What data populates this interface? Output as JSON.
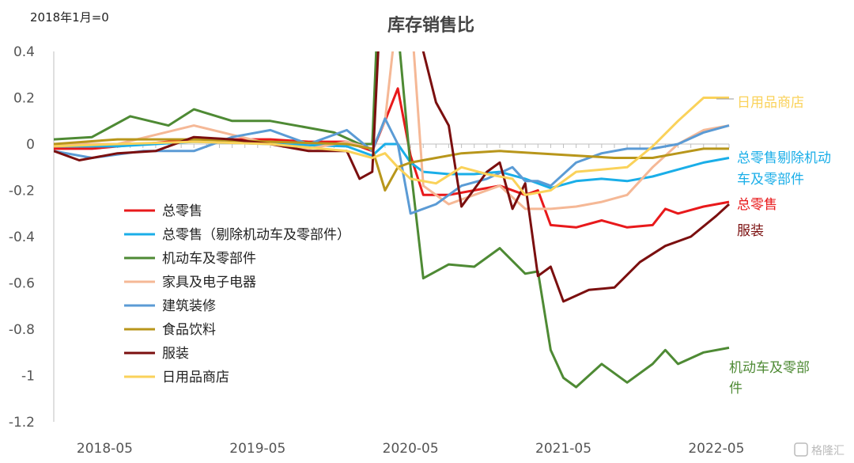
{
  "chart_data": {
    "type": "line",
    "title": "库存销售比",
    "note": "2018年1月=0",
    "ylim": [
      -1.2,
      0.4
    ],
    "yticks": [
      0.4,
      0.2,
      0,
      -0.2,
      -0.4,
      -0.6,
      -0.8,
      -1,
      -1.2
    ],
    "ytick_labels": [
      "0.4",
      "0.2",
      "0",
      "-0.2",
      "-0.4",
      "-0.6",
      "-0.8",
      "-1",
      "-1.2"
    ],
    "x_start": "2018-01",
    "x_end": "2022-06",
    "xticks": [
      "2018-05",
      "2019-05",
      "2020-05",
      "2021-05",
      "2022-05"
    ],
    "grid": false,
    "legend_position": "left-center",
    "watermark": "格隆汇",
    "series": [
      {
        "name": "总零售",
        "color": "#e8191b",
        "end_label": "总零售",
        "points": [
          [
            "2018-01",
            -0.02
          ],
          [
            "2018-04",
            -0.02
          ],
          [
            "2018-08",
            0.0
          ],
          [
            "2018-12",
            0.02
          ],
          [
            "2019-03",
            0.02
          ],
          [
            "2019-06",
            0.02
          ],
          [
            "2019-09",
            0.01
          ],
          [
            "2019-12",
            0.01
          ],
          [
            "2020-02",
            -0.03
          ],
          [
            "2020-03",
            0.1
          ],
          [
            "2020-04",
            0.24
          ],
          [
            "2020-05",
            -0.05
          ],
          [
            "2020-06",
            -0.22
          ],
          [
            "2020-08",
            -0.22
          ],
          [
            "2020-10",
            -0.2
          ],
          [
            "2020-12",
            -0.18
          ],
          [
            "2021-02",
            -0.22
          ],
          [
            "2021-03",
            -0.2
          ],
          [
            "2021-04",
            -0.35
          ],
          [
            "2021-06",
            -0.36
          ],
          [
            "2021-08",
            -0.33
          ],
          [
            "2021-10",
            -0.36
          ],
          [
            "2021-12",
            -0.35
          ],
          [
            "2022-01",
            -0.28
          ],
          [
            "2022-02",
            -0.3
          ],
          [
            "2022-04",
            -0.27
          ],
          [
            "2022-06",
            -0.25
          ]
        ]
      },
      {
        "name": "总零售（剔除机动车及零部件）",
        "color": "#1aaee8",
        "end_label": "总零售剔除机动车及零部件",
        "points": [
          [
            "2018-01",
            -0.01
          ],
          [
            "2018-06",
            -0.01
          ],
          [
            "2018-12",
            0.01
          ],
          [
            "2019-06",
            0.0
          ],
          [
            "2019-12",
            -0.01
          ],
          [
            "2020-02",
            -0.05
          ],
          [
            "2020-03",
            0.0
          ],
          [
            "2020-04",
            0.0
          ],
          [
            "2020-05",
            -0.08
          ],
          [
            "2020-06",
            -0.12
          ],
          [
            "2020-08",
            -0.13
          ],
          [
            "2020-10",
            -0.13
          ],
          [
            "2020-12",
            -0.12
          ],
          [
            "2021-02",
            -0.15
          ],
          [
            "2021-04",
            -0.19
          ],
          [
            "2021-06",
            -0.16
          ],
          [
            "2021-08",
            -0.15
          ],
          [
            "2021-10",
            -0.16
          ],
          [
            "2021-12",
            -0.14
          ],
          [
            "2022-02",
            -0.11
          ],
          [
            "2022-04",
            -0.08
          ],
          [
            "2022-06",
            -0.06
          ]
        ]
      },
      {
        "name": "机动车及零部件",
        "color": "#4e8a34",
        "end_label": "机动车及零部件",
        "points": [
          [
            "2018-01",
            0.02
          ],
          [
            "2018-04",
            0.03
          ],
          [
            "2018-07",
            0.12
          ],
          [
            "2018-10",
            0.08
          ],
          [
            "2018-12",
            0.15
          ],
          [
            "2019-03",
            0.1
          ],
          [
            "2019-06",
            0.1
          ],
          [
            "2019-09",
            0.07
          ],
          [
            "2019-11",
            0.05
          ],
          [
            "2020-01",
            0.0
          ],
          [
            "2020-02",
            0.0
          ],
          [
            "2020-03",
            1.3
          ],
          [
            "2020-04",
            0.5
          ],
          [
            "2020-05",
            -0.1
          ],
          [
            "2020-06",
            -0.58
          ],
          [
            "2020-08",
            -0.52
          ],
          [
            "2020-10",
            -0.53
          ],
          [
            "2020-12",
            -0.45
          ],
          [
            "2021-02",
            -0.56
          ],
          [
            "2021-03",
            -0.55
          ],
          [
            "2021-04",
            -0.89
          ],
          [
            "2021-05",
            -1.01
          ],
          [
            "2021-06",
            -1.05
          ],
          [
            "2021-08",
            -0.95
          ],
          [
            "2021-10",
            -1.03
          ],
          [
            "2021-12",
            -0.95
          ],
          [
            "2022-01",
            -0.89
          ],
          [
            "2022-02",
            -0.95
          ],
          [
            "2022-04",
            -0.9
          ],
          [
            "2022-06",
            -0.88
          ]
        ]
      },
      {
        "name": "家具及电子电器",
        "color": "#f5b896",
        "end_label": "",
        "points": [
          [
            "2018-01",
            0.0
          ],
          [
            "2018-06",
            0.0
          ],
          [
            "2018-09",
            0.04
          ],
          [
            "2018-12",
            0.08
          ],
          [
            "2019-03",
            0.04
          ],
          [
            "2019-06",
            0.0
          ],
          [
            "2019-09",
            -0.02
          ],
          [
            "2019-12",
            0.01
          ],
          [
            "2020-02",
            -0.02
          ],
          [
            "2020-03",
            0.1
          ],
          [
            "2020-04",
            0.6
          ],
          [
            "2020-05",
            0.6
          ],
          [
            "2020-06",
            -0.18
          ],
          [
            "2020-08",
            -0.26
          ],
          [
            "2020-10",
            -0.22
          ],
          [
            "2020-12",
            -0.18
          ],
          [
            "2021-02",
            -0.28
          ],
          [
            "2021-04",
            -0.28
          ],
          [
            "2021-06",
            -0.27
          ],
          [
            "2021-08",
            -0.25
          ],
          [
            "2021-10",
            -0.22
          ],
          [
            "2021-12",
            -0.1
          ],
          [
            "2022-02",
            0.0
          ],
          [
            "2022-04",
            0.06
          ],
          [
            "2022-06",
            0.08
          ]
        ]
      },
      {
        "name": "建筑装修",
        "color": "#5b9bd5",
        "end_label": "",
        "points": [
          [
            "2018-01",
            -0.03
          ],
          [
            "2018-04",
            -0.06
          ],
          [
            "2018-08",
            -0.03
          ],
          [
            "2018-12",
            -0.03
          ],
          [
            "2019-03",
            0.03
          ],
          [
            "2019-06",
            0.06
          ],
          [
            "2019-09",
            0.0
          ],
          [
            "2019-12",
            0.06
          ],
          [
            "2020-02",
            -0.03
          ],
          [
            "2020-03",
            0.11
          ],
          [
            "2020-04",
            0.0
          ],
          [
            "2020-05",
            -0.3
          ],
          [
            "2020-07",
            -0.26
          ],
          [
            "2020-09",
            -0.18
          ],
          [
            "2020-11",
            -0.15
          ],
          [
            "2021-01",
            -0.1
          ],
          [
            "2021-02",
            -0.16
          ],
          [
            "2021-03",
            -0.16
          ],
          [
            "2021-04",
            -0.18
          ],
          [
            "2021-06",
            -0.08
          ],
          [
            "2021-08",
            -0.04
          ],
          [
            "2021-10",
            -0.02
          ],
          [
            "2021-12",
            -0.02
          ],
          [
            "2022-02",
            0.0
          ],
          [
            "2022-04",
            0.05
          ],
          [
            "2022-06",
            0.08
          ]
        ]
      },
      {
        "name": "食品饮料",
        "color": "#b8961b",
        "end_label": "",
        "points": [
          [
            "2018-01",
            0.0
          ],
          [
            "2018-06",
            0.02
          ],
          [
            "2018-12",
            0.02
          ],
          [
            "2019-06",
            0.01
          ],
          [
            "2019-12",
            0.0
          ],
          [
            "2020-02",
            -0.02
          ],
          [
            "2020-03",
            -0.2
          ],
          [
            "2020-04",
            -0.1
          ],
          [
            "2020-05",
            -0.08
          ],
          [
            "2020-07",
            -0.06
          ],
          [
            "2020-09",
            -0.04
          ],
          [
            "2020-12",
            -0.03
          ],
          [
            "2021-03",
            -0.04
          ],
          [
            "2021-06",
            -0.05
          ],
          [
            "2021-09",
            -0.06
          ],
          [
            "2021-12",
            -0.06
          ],
          [
            "2022-02",
            -0.04
          ],
          [
            "2022-04",
            -0.02
          ],
          [
            "2022-06",
            -0.02
          ]
        ]
      },
      {
        "name": "服装",
        "color": "#7b0f0f",
        "end_label": "服装",
        "points": [
          [
            "2018-01",
            -0.03
          ],
          [
            "2018-03",
            -0.07
          ],
          [
            "2018-06",
            -0.04
          ],
          [
            "2018-09",
            -0.03
          ],
          [
            "2018-12",
            0.03
          ],
          [
            "2019-03",
            0.02
          ],
          [
            "2019-06",
            0.0
          ],
          [
            "2019-09",
            -0.03
          ],
          [
            "2019-12",
            -0.03
          ],
          [
            "2020-01",
            -0.15
          ],
          [
            "2020-02",
            -0.12
          ],
          [
            "2020-03",
            1.0
          ],
          [
            "2020-04",
            1.2
          ],
          [
            "2020-06",
            0.4
          ],
          [
            "2020-07",
            0.18
          ],
          [
            "2020-08",
            0.08
          ],
          [
            "2020-09",
            -0.27
          ],
          [
            "2020-11",
            -0.12
          ],
          [
            "2020-12",
            -0.08
          ],
          [
            "2021-01",
            -0.28
          ],
          [
            "2021-02",
            -0.17
          ],
          [
            "2021-03",
            -0.57
          ],
          [
            "2021-04",
            -0.53
          ],
          [
            "2021-05",
            -0.68
          ],
          [
            "2021-07",
            -0.63
          ],
          [
            "2021-09",
            -0.62
          ],
          [
            "2021-11",
            -0.51
          ],
          [
            "2022-01",
            -0.44
          ],
          [
            "2022-03",
            -0.4
          ],
          [
            "2022-05",
            -0.31
          ],
          [
            "2022-06",
            -0.26
          ]
        ]
      },
      {
        "name": "日用品商店",
        "color": "#fad25a",
        "end_label": "日用品商店",
        "points": [
          [
            "2018-01",
            -0.01
          ],
          [
            "2018-06",
            0.0
          ],
          [
            "2018-12",
            0.01
          ],
          [
            "2019-06",
            0.0
          ],
          [
            "2019-12",
            -0.03
          ],
          [
            "2020-02",
            -0.06
          ],
          [
            "2020-03",
            -0.04
          ],
          [
            "2020-04",
            -0.1
          ],
          [
            "2020-05",
            -0.15
          ],
          [
            "2020-07",
            -0.17
          ],
          [
            "2020-09",
            -0.1
          ],
          [
            "2020-11",
            -0.13
          ],
          [
            "2021-01",
            -0.15
          ],
          [
            "2021-02",
            -0.22
          ],
          [
            "2021-04",
            -0.2
          ],
          [
            "2021-06",
            -0.12
          ],
          [
            "2021-08",
            -0.11
          ],
          [
            "2021-10",
            -0.1
          ],
          [
            "2021-12",
            -0.01
          ],
          [
            "2022-02",
            0.1
          ],
          [
            "2022-04",
            0.2
          ],
          [
            "2022-06",
            0.2
          ]
        ]
      }
    ]
  }
}
